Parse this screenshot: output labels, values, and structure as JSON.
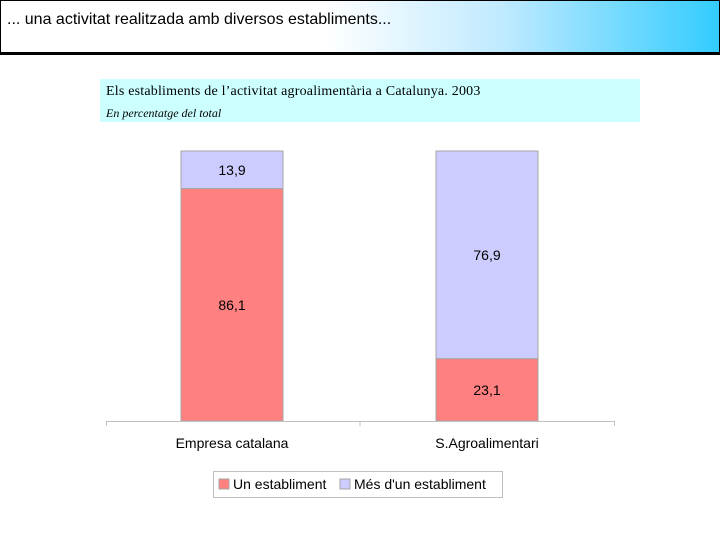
{
  "slide": {
    "title": "... una activitat realitzada amb diversos establiments..."
  },
  "chart_data": {
    "type": "bar",
    "stacked": true,
    "title": "Els establiments de l’activitat agroalimentària a Catalunya. 2003",
    "subtitle": "En percentatge del total",
    "categories": [
      "Empresa catalana",
      "S.Agroalimentari"
    ],
    "series": [
      {
        "name": "Un establiment",
        "values": [
          86.1,
          23.1
        ],
        "labels": [
          "86,1",
          "23,1"
        ],
        "color": "#ff8080"
      },
      {
        "name": "Més d'un establiment",
        "values": [
          13.9,
          76.9
        ],
        "labels": [
          "13,9",
          "76,9"
        ],
        "color": "#ccccff"
      }
    ],
    "ylim": [
      0,
      100
    ],
    "grid": false,
    "legend": "bottom"
  }
}
